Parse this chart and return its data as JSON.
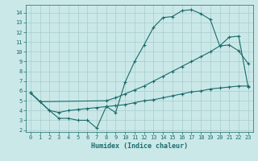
{
  "xlabel": "Humidex (Indice chaleur)",
  "background_color": "#cbe8e8",
  "grid_color": "#a8cccc",
  "line_color": "#1a6b6b",
  "xlim": [
    -0.5,
    23.5
  ],
  "ylim": [
    1.8,
    14.8
  ],
  "xticks": [
    0,
    1,
    2,
    3,
    4,
    5,
    6,
    7,
    8,
    9,
    10,
    11,
    12,
    13,
    14,
    15,
    16,
    17,
    18,
    19,
    20,
    21,
    22,
    23
  ],
  "yticks": [
    2,
    3,
    4,
    5,
    6,
    7,
    8,
    9,
    10,
    11,
    12,
    13,
    14
  ],
  "curve1_x": [
    0,
    1,
    2,
    3,
    4,
    5,
    6,
    7,
    8,
    9,
    10,
    11,
    12,
    13,
    14,
    15,
    16,
    17,
    18,
    19,
    20,
    21,
    22,
    23
  ],
  "curve1_y": [
    5.8,
    4.9,
    4.0,
    3.2,
    3.2,
    3.0,
    3.0,
    2.2,
    4.4,
    3.8,
    6.9,
    9.0,
    10.7,
    12.5,
    13.5,
    13.6,
    14.2,
    14.3,
    13.9,
    13.3,
    10.6,
    10.7,
    10.1,
    8.8
  ],
  "curve2_x": [
    0,
    1,
    8,
    9,
    10,
    11,
    12,
    13,
    14,
    15,
    16,
    17,
    18,
    19,
    20,
    21,
    22,
    23
  ],
  "curve2_y": [
    5.8,
    4.9,
    5.0,
    5.3,
    5.7,
    6.1,
    6.5,
    7.0,
    7.5,
    8.0,
    8.5,
    9.0,
    9.5,
    10.0,
    10.6,
    11.5,
    11.6,
    6.4
  ],
  "curve3_x": [
    0,
    1,
    2,
    3,
    4,
    5,
    6,
    7,
    8,
    9,
    10,
    11,
    12,
    13,
    14,
    15,
    16,
    17,
    18,
    19,
    20,
    21,
    22,
    23
  ],
  "curve3_y": [
    5.8,
    4.9,
    4.0,
    3.8,
    4.0,
    4.1,
    4.2,
    4.3,
    4.4,
    4.5,
    4.6,
    4.8,
    5.0,
    5.1,
    5.3,
    5.5,
    5.7,
    5.9,
    6.0,
    6.2,
    6.3,
    6.4,
    6.5,
    6.5
  ]
}
